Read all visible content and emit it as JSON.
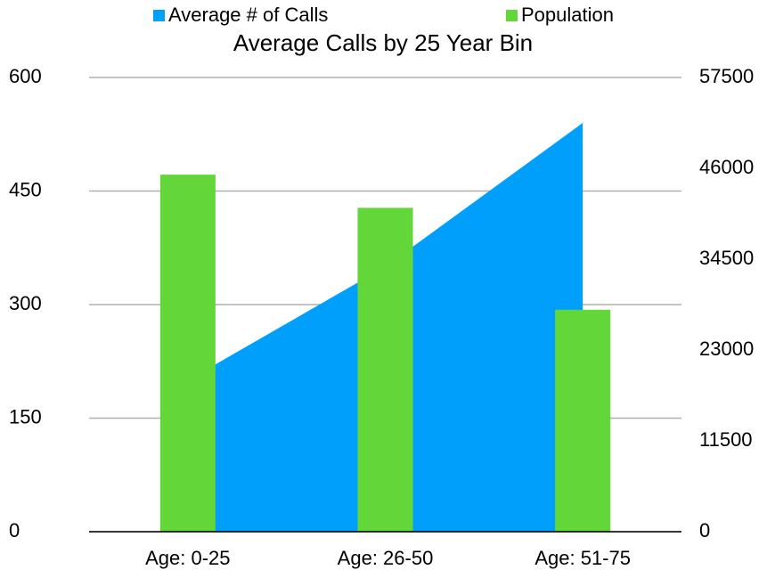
{
  "chart_data": {
    "type": "area-bar",
    "title": "Average Calls by 25 Year Bin",
    "categories": [
      "Age: 0-25",
      "Age: 26-50",
      "Age: 51-75"
    ],
    "series": [
      {
        "name": "Average # of Calls",
        "type": "area",
        "color": "#009ffc",
        "values": [
          200,
          350,
          540
        ]
      },
      {
        "name": "Population",
        "type": "bar",
        "axis": "y2",
        "color": "#63d63a",
        "values": [
          45200,
          41000,
          28100
        ]
      }
    ],
    "ylim": [
      0,
      600
    ],
    "yticks": [
      0,
      150,
      300,
      450,
      600
    ],
    "y2lim": [
      0,
      57500
    ],
    "y2ticks": [
      0,
      11500,
      23000,
      34500,
      46000,
      57500
    ],
    "grid": true,
    "legend": "top"
  }
}
